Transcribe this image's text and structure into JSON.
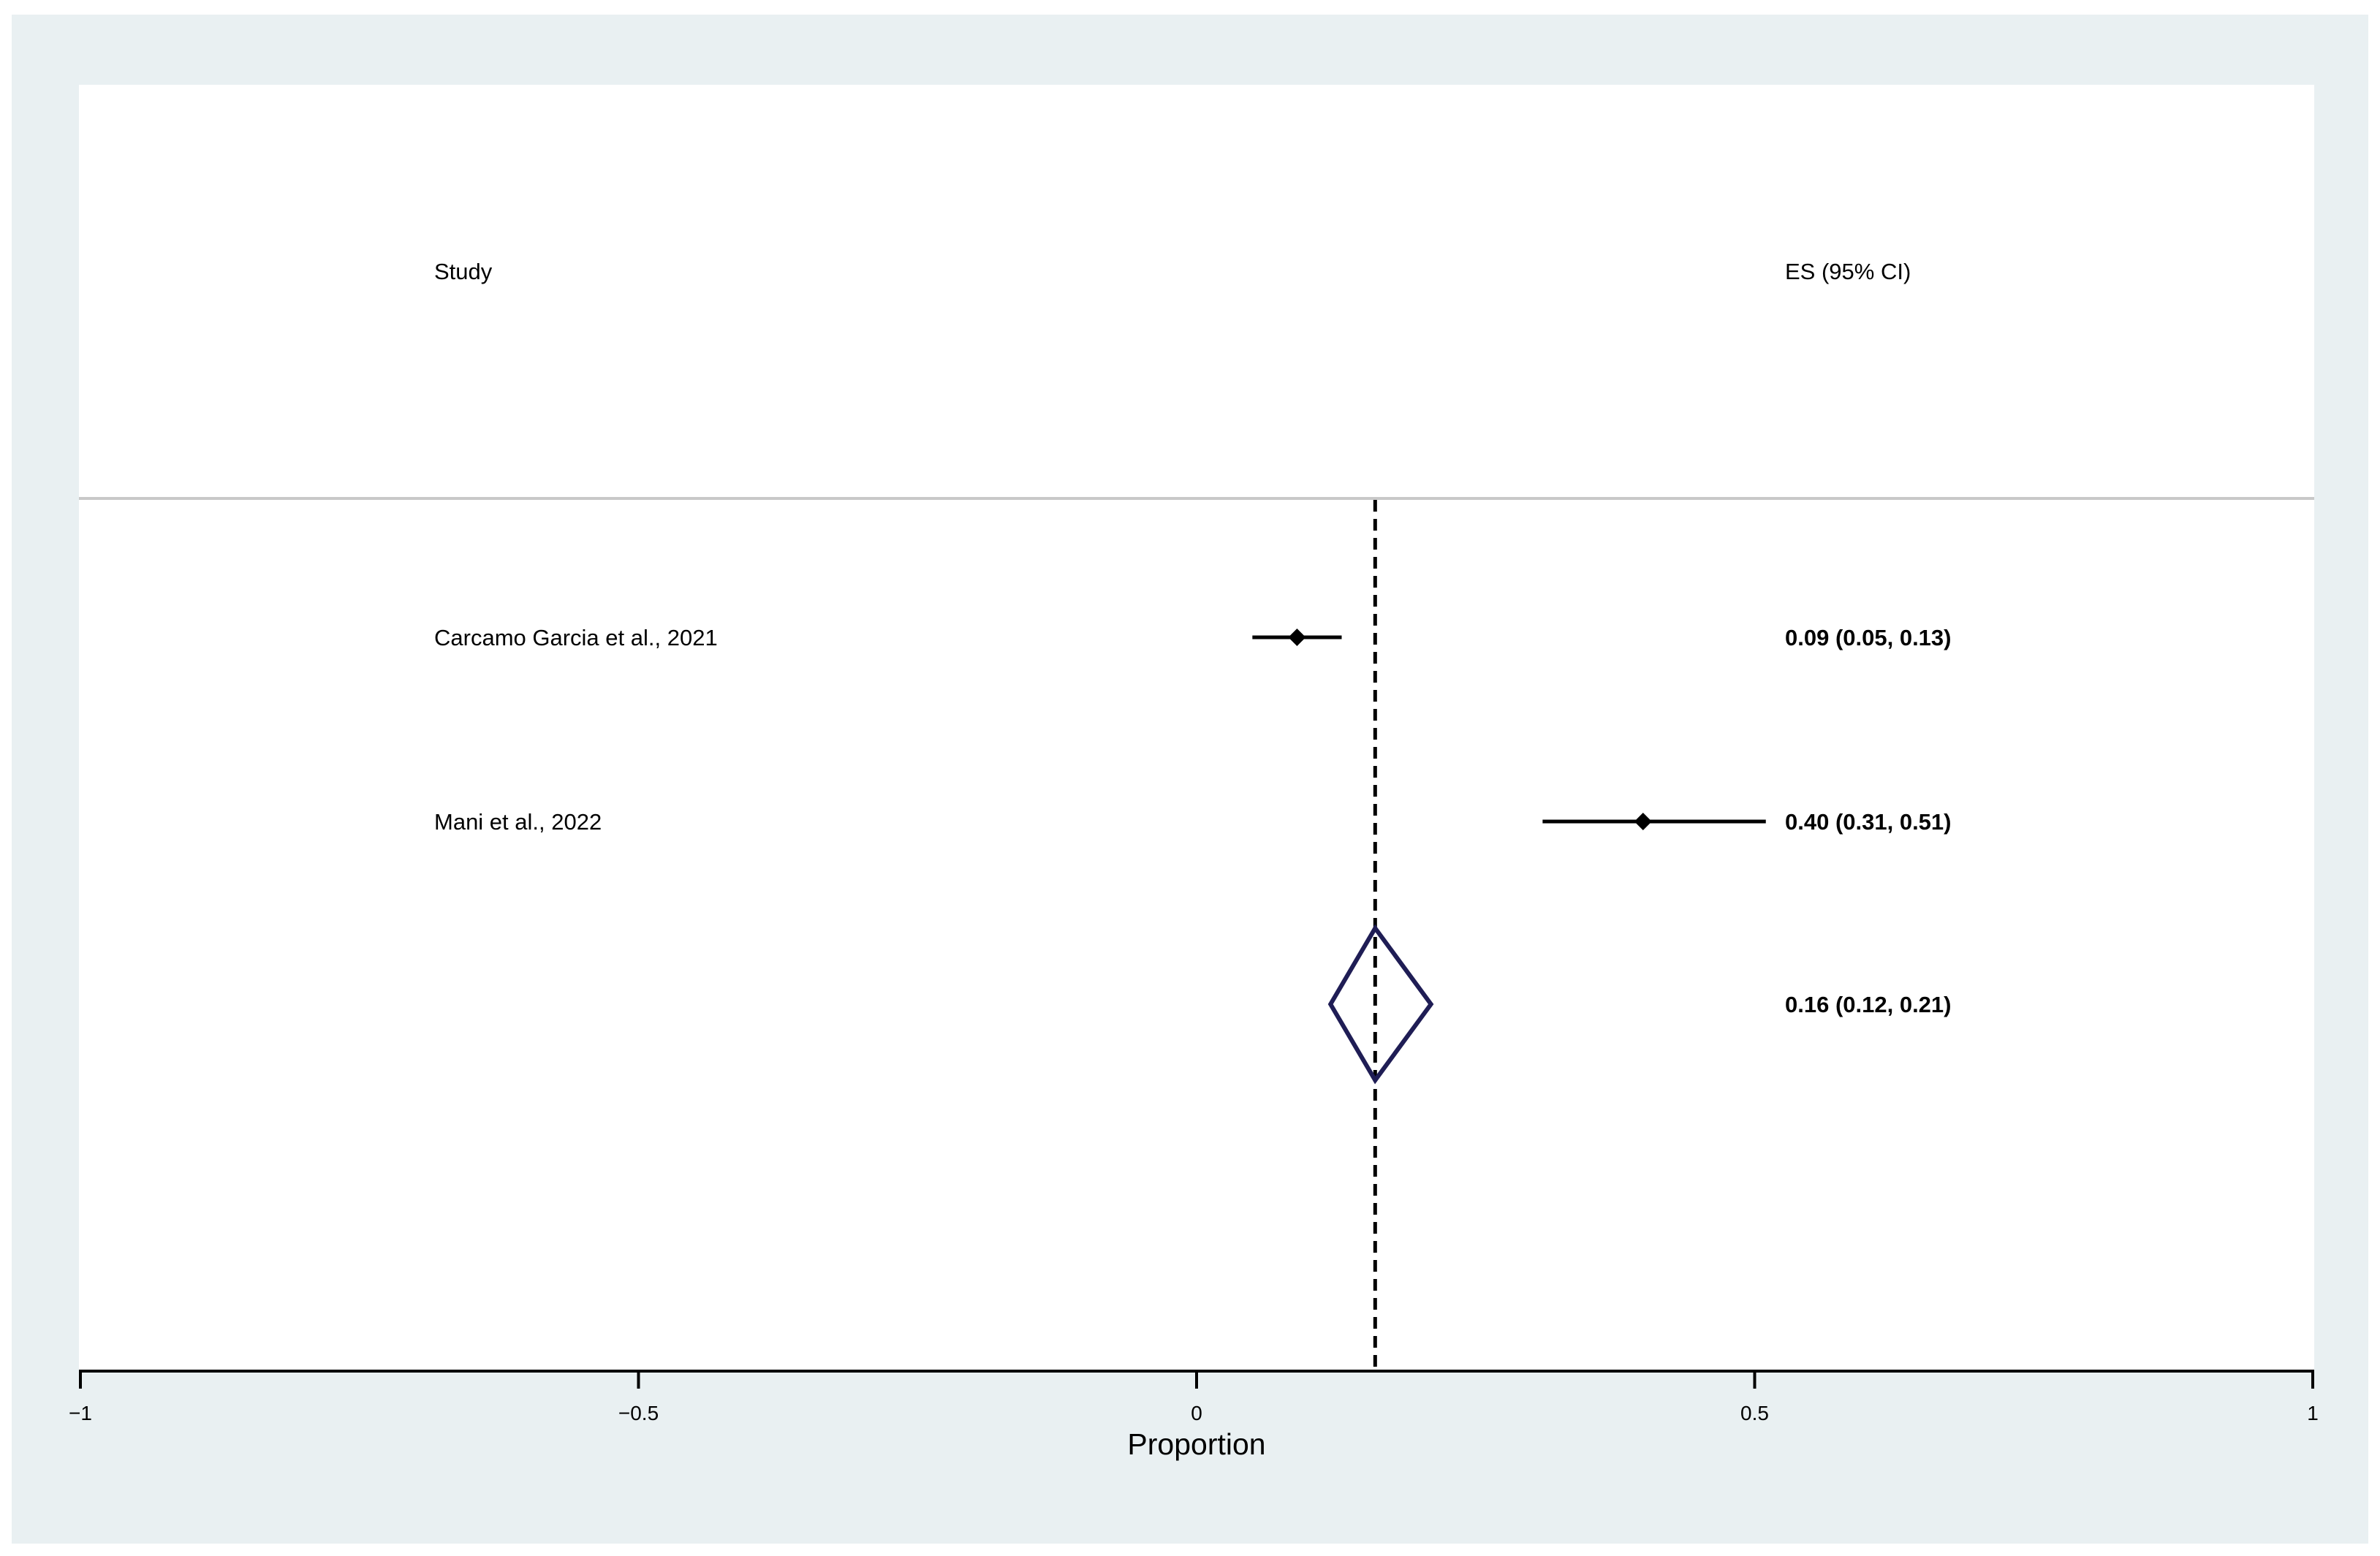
{
  "chart_data": {
    "type": "forest",
    "columns": {
      "study_header": "Study",
      "es_header": "ES (95% CI)"
    },
    "studies": [
      {
        "label": "Carcamo Garcia et al., 2021",
        "es": 0.09,
        "lo": 0.05,
        "hi": 0.13,
        "es_text": "0.09 (0.05, 0.13)"
      },
      {
        "label": "Mani et al., 2022",
        "es": 0.4,
        "lo": 0.31,
        "hi": 0.51,
        "es_text": "0.40 (0.31, 0.51)"
      }
    ],
    "overall": {
      "es": 0.16,
      "lo": 0.12,
      "hi": 0.21,
      "es_text": "0.16 (0.12, 0.21)"
    },
    "xlabel": "Proportion",
    "xlim": [
      -1,
      1
    ],
    "xticks": [
      -1,
      -0.5,
      0,
      0.5,
      1
    ],
    "xtick_labels": [
      "−1",
      "−0.5",
      "0",
      "0.5",
      "1"
    ],
    "colors": {
      "frame": "#e9f0f2",
      "diamond": "#1f1d55",
      "separator": "#c8c8c8",
      "marks": "#000000"
    }
  }
}
